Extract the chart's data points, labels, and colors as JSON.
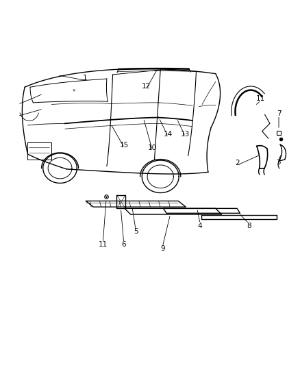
{
  "background_color": "#ffffff",
  "line_color": "#000000",
  "line_width": 1.0,
  "fig_width": 4.38,
  "fig_height": 5.33
}
